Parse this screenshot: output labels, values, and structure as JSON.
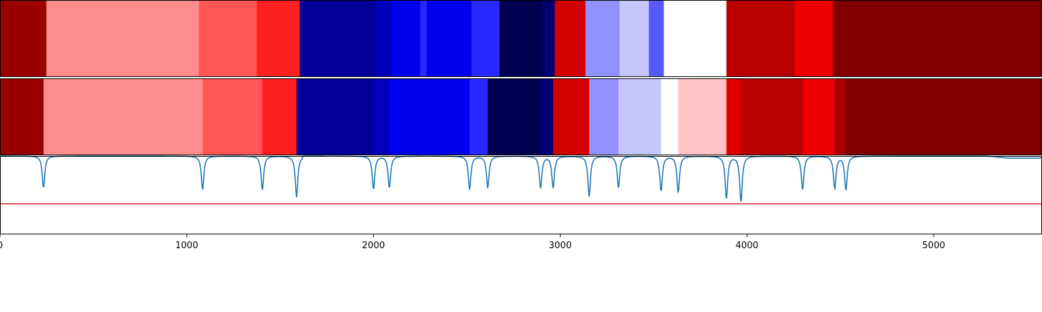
{
  "chart_data": {
    "type": "heatmap",
    "x_axis": {
      "range": [
        0,
        5580
      ],
      "ticks": [
        0,
        1000,
        2000,
        3000,
        4000,
        5000
      ],
      "tick_labels": [
        "0",
        "1000",
        "2000",
        "3000",
        "4000",
        "5000"
      ]
    },
    "colormap": "seismic",
    "grid": false,
    "legend": "none",
    "rows": [
      {
        "segments": [
          {
            "start": 0,
            "end": 248,
            "color": "#990000"
          },
          {
            "start": 248,
            "end": 1065,
            "color": "#ff8c8c"
          },
          {
            "start": 1065,
            "end": 1375,
            "color": "#ff5555"
          },
          {
            "start": 1375,
            "end": 1605,
            "color": "#ff2020"
          },
          {
            "start": 1605,
            "end": 2010,
            "color": "#000099"
          },
          {
            "start": 2010,
            "end": 2100,
            "color": "#0000bb"
          },
          {
            "start": 2100,
            "end": 2250,
            "color": "#0000ee"
          },
          {
            "start": 2250,
            "end": 2285,
            "color": "#2828ff"
          },
          {
            "start": 2285,
            "end": 2525,
            "color": "#0000ee"
          },
          {
            "start": 2525,
            "end": 2675,
            "color": "#2828ff"
          },
          {
            "start": 2675,
            "end": 2905,
            "color": "#000050"
          },
          {
            "start": 2905,
            "end": 2970,
            "color": "#000075"
          },
          {
            "start": 2970,
            "end": 3135,
            "color": "#d40000"
          },
          {
            "start": 3135,
            "end": 3318,
            "color": "#9090ff"
          },
          {
            "start": 3318,
            "end": 3475,
            "color": "#c6c6ff"
          },
          {
            "start": 3475,
            "end": 3555,
            "color": "#5858ff"
          },
          {
            "start": 3555,
            "end": 3890,
            "color": "#ffffff"
          },
          {
            "start": 3890,
            "end": 4255,
            "color": "#b80000"
          },
          {
            "start": 4255,
            "end": 4460,
            "color": "#ee0000"
          },
          {
            "start": 4460,
            "end": 5580,
            "color": "#800000"
          }
        ]
      },
      {
        "segments": [
          {
            "start": 0,
            "end": 233,
            "color": "#990000"
          },
          {
            "start": 233,
            "end": 1085,
            "color": "#ff8c8c"
          },
          {
            "start": 1085,
            "end": 1405,
            "color": "#ff5555"
          },
          {
            "start": 1405,
            "end": 1588,
            "color": "#ff2020"
          },
          {
            "start": 1588,
            "end": 2000,
            "color": "#000099"
          },
          {
            "start": 2000,
            "end": 2085,
            "color": "#0000bb"
          },
          {
            "start": 2085,
            "end": 2515,
            "color": "#0000ee"
          },
          {
            "start": 2515,
            "end": 2612,
            "color": "#2828ff"
          },
          {
            "start": 2612,
            "end": 2895,
            "color": "#000050"
          },
          {
            "start": 2895,
            "end": 2962,
            "color": "#000075"
          },
          {
            "start": 2962,
            "end": 3155,
            "color": "#d40000"
          },
          {
            "start": 3155,
            "end": 3312,
            "color": "#9090ff"
          },
          {
            "start": 3312,
            "end": 3540,
            "color": "#c6c6ff"
          },
          {
            "start": 3540,
            "end": 3632,
            "color": "#ffffff"
          },
          {
            "start": 3632,
            "end": 3890,
            "color": "#ffc2c2"
          },
          {
            "start": 3890,
            "end": 3968,
            "color": "#dd0000"
          },
          {
            "start": 3968,
            "end": 4298,
            "color": "#b80000"
          },
          {
            "start": 4298,
            "end": 4470,
            "color": "#ee0000"
          },
          {
            "start": 4470,
            "end": 4530,
            "color": "#aa0000"
          },
          {
            "start": 4530,
            "end": 5580,
            "color": "#800000"
          }
        ]
      }
    ],
    "line": {
      "type": "line",
      "color": "#1f77b4",
      "baseline": 1.0,
      "dips": [
        {
          "x": 233,
          "value": 0.55
        },
        {
          "x": 1085,
          "value": 0.52
        },
        {
          "x": 1405,
          "value": 0.52
        },
        {
          "x": 1588,
          "value": 0.42
        },
        {
          "x": 2000,
          "value": 0.53
        },
        {
          "x": 2085,
          "value": 0.55
        },
        {
          "x": 2515,
          "value": 0.53
        },
        {
          "x": 2612,
          "value": 0.55
        },
        {
          "x": 2895,
          "value": 0.55
        },
        {
          "x": 2962,
          "value": 0.55
        },
        {
          "x": 3155,
          "value": 0.43
        },
        {
          "x": 3312,
          "value": 0.55
        },
        {
          "x": 3540,
          "value": 0.5
        },
        {
          "x": 3632,
          "value": 0.48
        },
        {
          "x": 3890,
          "value": 0.4
        },
        {
          "x": 3968,
          "value": 0.35
        },
        {
          "x": 4298,
          "value": 0.52
        },
        {
          "x": 4470,
          "value": 0.54
        },
        {
          "x": 4530,
          "value": 0.52
        }
      ],
      "ylim": [
        -0.1,
        1.0
      ],
      "shoulder": {
        "x_start": 5280,
        "x_end": 5580,
        "value": 0.97
      },
      "hump": {
        "x_start": 1620,
        "x_end": 1730,
        "value": 1.02
      }
    },
    "threshold_line": {
      "value": 0.33,
      "color": "#ee2222"
    }
  }
}
